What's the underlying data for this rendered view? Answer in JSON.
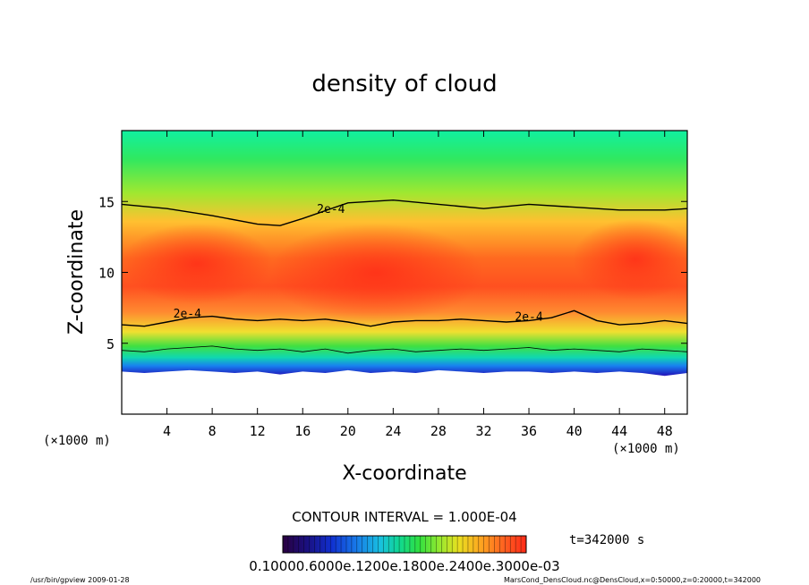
{
  "chart_data": {
    "type": "heatmap",
    "title": "density of cloud",
    "xlabel": "X-coordinate",
    "ylabel": "Z-coordinate",
    "x_units": "(×1000 m)",
    "y_units": "(×1000 m)",
    "xlim": [
      0,
      50
    ],
    "ylim": [
      0,
      20
    ],
    "x_ticks": [
      4,
      8,
      12,
      16,
      20,
      24,
      28,
      32,
      36,
      40,
      44,
      48
    ],
    "y_ticks": [
      5,
      10,
      15
    ],
    "contour_interval_text": "CONTOUR INTERVAL = 1.000E-04",
    "contour_labels": [
      {
        "text": "2e-4",
        "x": 18.5,
        "z": 14.2
      },
      {
        "text": "2e-4",
        "x": 5.8,
        "z": 6.8
      },
      {
        "text": "2e-4",
        "x": 36.0,
        "z": 6.6
      }
    ],
    "contour_upper_2e4": {
      "x": [
        0,
        4,
        8,
        12,
        14,
        16,
        20,
        24,
        28,
        32,
        36,
        40,
        44,
        48,
        50
      ],
      "z": [
        14.8,
        14.5,
        14.0,
        13.4,
        13.3,
        13.8,
        14.9,
        15.1,
        14.8,
        14.5,
        14.8,
        14.6,
        14.4,
        14.4,
        14.5
      ]
    },
    "contour_lower_2e4": {
      "x": [
        0,
        2,
        4,
        6,
        8,
        10,
        12,
        14,
        16,
        18,
        20,
        22,
        24,
        26,
        28,
        30,
        32,
        34,
        36,
        38,
        40,
        42,
        44,
        46,
        48,
        50
      ],
      "z": [
        6.3,
        6.2,
        6.5,
        6.8,
        6.9,
        6.7,
        6.6,
        6.7,
        6.6,
        6.7,
        6.5,
        6.2,
        6.5,
        6.6,
        6.6,
        6.7,
        6.6,
        6.5,
        6.6,
        6.8,
        7.3,
        6.6,
        6.3,
        6.4,
        6.6,
        6.4
      ]
    },
    "contour_lower_1e4": {
      "x": [
        0,
        2,
        4,
        6,
        8,
        10,
        12,
        14,
        16,
        18,
        20,
        22,
        24,
        26,
        28,
        30,
        32,
        34,
        36,
        38,
        40,
        42,
        44,
        46,
        48,
        50
      ],
      "z": [
        4.5,
        4.4,
        4.6,
        4.7,
        4.8,
        4.6,
        4.5,
        4.6,
        4.4,
        4.6,
        4.3,
        4.5,
        4.6,
        4.4,
        4.5,
        4.6,
        4.5,
        4.6,
        4.7,
        4.5,
        4.6,
        4.5,
        4.4,
        4.6,
        4.5,
        4.4
      ]
    },
    "cloud_base": {
      "x": [
        0,
        2,
        4,
        6,
        8,
        10,
        12,
        14,
        16,
        18,
        20,
        22,
        24,
        26,
        28,
        30,
        32,
        34,
        36,
        38,
        40,
        42,
        44,
        46,
        48,
        50
      ],
      "z": [
        3.0,
        2.9,
        3.0,
        3.1,
        3.0,
        2.9,
        3.0,
        2.8,
        3.0,
        2.9,
        3.1,
        2.9,
        3.0,
        2.9,
        3.1,
        3.0,
        2.9,
        3.0,
        3.0,
        2.9,
        3.0,
        2.9,
        3.0,
        2.9,
        2.7,
        2.9
      ]
    },
    "colorbar": {
      "labels_text": "0.10000.6000e.1200e.1800e.2400e.3000e-03",
      "label": "t=342000 s",
      "colors": [
        "#2a0040",
        "#1a1080",
        "#1030d0",
        "#1878e8",
        "#18c0e0",
        "#10d890",
        "#30e040",
        "#90e830",
        "#e8e020",
        "#ffa020",
        "#ff6020",
        "#ff2a18"
      ]
    },
    "colors": {
      "dense": "#ff4020",
      "mid": "#ffa030",
      "yellow": "#e8e830",
      "green": "#30e040",
      "top": "#10f0a0"
    }
  },
  "footer": {
    "left": "/usr/bin/gpview  2009-01-28",
    "right": "MarsCond_DensCloud.nc@DensCloud,x=0:50000,z=0:20000,t=342000"
  }
}
